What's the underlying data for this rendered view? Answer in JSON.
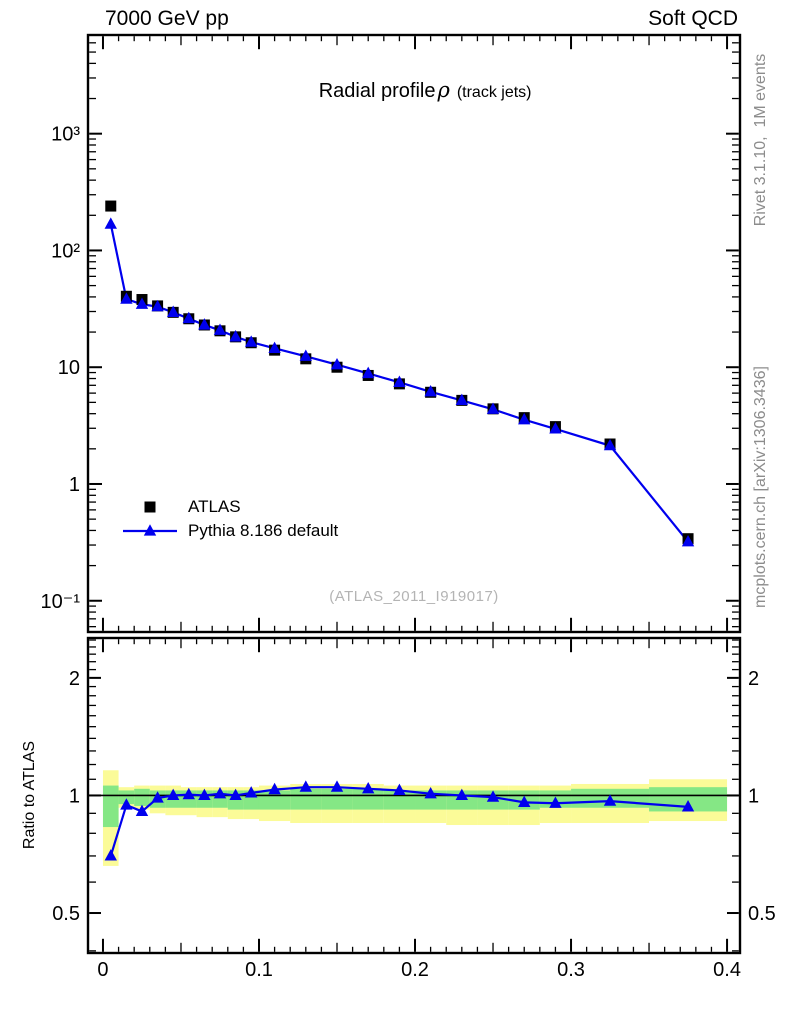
{
  "header": {
    "left": "7000 GeV pp",
    "right": "Soft QCD"
  },
  "title": {
    "main": "Radial profile",
    "symbol": "ρ",
    "paren": "(track jets)"
  },
  "legend": {
    "items": [
      {
        "label": "ATLAS",
        "marker": "black-square"
      },
      {
        "label": "Pythia 8.186 default",
        "marker": "blue-line-triangle"
      }
    ]
  },
  "watermark": "(ATLAS_2011_I919017)",
  "axis_labels": {
    "ratio_y": "Ratio to ATLAS"
  },
  "side_notes": {
    "right_top": "Rivet 3.1.10,  1M events",
    "right_bottom": "mcplots.cern.ch [arXiv:1306.3436]"
  },
  "colors": {
    "mc_blue": "#0000ee",
    "data_black": "#000000",
    "band_yellow": "#fbfb98",
    "band_green": "#85e785",
    "gray_text": "#8c8c8c",
    "watermark_gray": "#b4b4b4",
    "frame_black": "#000000"
  },
  "chart_data": [
    {
      "type": "line",
      "title": "Radial profile ρ (track jets)",
      "xlabel": "",
      "ylabel": "",
      "yscale": "log",
      "xlim": [
        -0.0096,
        0.4083
      ],
      "ylim": [
        0.054,
        7000
      ],
      "x": [
        0.005,
        0.015,
        0.025,
        0.035,
        0.045,
        0.055,
        0.065,
        0.075,
        0.085,
        0.095,
        0.11,
        0.13,
        0.15,
        0.17,
        0.19,
        0.21,
        0.23,
        0.25,
        0.27,
        0.29,
        0.325,
        0.375
      ],
      "series": [
        {
          "name": "ATLAS",
          "marker": "square",
          "color": "#000000",
          "values": [
            240,
            40.5,
            38.0,
            33.5,
            29.5,
            26.0,
            23.0,
            20.5,
            18.2,
            16.2,
            14.0,
            11.8,
            10.0,
            8.5,
            7.2,
            6.1,
            5.2,
            4.4,
            3.7,
            3.1,
            2.2,
            0.34
          ]
        },
        {
          "name": "Pythia 8.186 default",
          "marker": "triangle",
          "color": "#0000ee",
          "values": [
            168,
            38.3,
            34.6,
            33.0,
            29.5,
            26.1,
            23.0,
            20.7,
            18.2,
            16.4,
            14.5,
            12.4,
            10.5,
            8.84,
            7.42,
            6.16,
            5.2,
            4.36,
            3.55,
            2.96,
            2.13,
            0.32
          ]
        }
      ],
      "xticks": [
        {
          "label": "0",
          "value": 0.0
        },
        {
          "label": "0.1",
          "value": 0.1
        },
        {
          "label": "0.2",
          "value": 0.2
        },
        {
          "label": "0.3",
          "value": 0.3
        },
        {
          "label": "0.4",
          "value": 0.4
        }
      ],
      "yticks": [
        {
          "label": "10³",
          "value": 1000
        },
        {
          "label": "10²",
          "value": 100
        },
        {
          "label": "10",
          "value": 10
        },
        {
          "label": "1",
          "value": 1
        },
        {
          "label": "10⁻¹",
          "value": 0.1
        }
      ],
      "legend_position": "inside-left-bottom",
      "grid": false
    },
    {
      "type": "ratio-line",
      "ylabel": "Ratio to ATLAS",
      "yscale": "log",
      "ylim": [
        0.395,
        2.53
      ],
      "x": [
        0.005,
        0.015,
        0.025,
        0.035,
        0.045,
        0.055,
        0.065,
        0.075,
        0.085,
        0.095,
        0.11,
        0.13,
        0.15,
        0.17,
        0.19,
        0.21,
        0.23,
        0.25,
        0.27,
        0.29,
        0.325,
        0.375
      ],
      "values": [
        0.7,
        0.945,
        0.91,
        0.985,
        1.0,
        1.005,
        1.0,
        1.01,
        1.0,
        1.015,
        1.035,
        1.05,
        1.05,
        1.04,
        1.03,
        1.01,
        1.0,
        0.99,
        0.96,
        0.955,
        0.967,
        0.935
      ],
      "bin_edges": [
        0,
        0.01,
        0.02,
        0.03,
        0.04,
        0.05,
        0.06,
        0.07,
        0.08,
        0.09,
        0.1,
        0.12,
        0.14,
        0.16,
        0.18,
        0.2,
        0.22,
        0.24,
        0.26,
        0.28,
        0.3,
        0.35,
        0.4
      ],
      "band_yellow": [
        [
          0.66,
          1.16
        ],
        [
          0.93,
          1.05
        ],
        [
          0.92,
          1.06
        ],
        [
          0.9,
          1.06
        ],
        [
          0.89,
          1.06
        ],
        [
          0.89,
          1.05
        ],
        [
          0.88,
          1.05
        ],
        [
          0.88,
          1.05
        ],
        [
          0.87,
          1.05
        ],
        [
          0.87,
          1.05
        ],
        [
          0.86,
          1.06
        ],
        [
          0.85,
          1.07
        ],
        [
          0.85,
          1.07
        ],
        [
          0.85,
          1.07
        ],
        [
          0.85,
          1.06
        ],
        [
          0.85,
          1.06
        ],
        [
          0.84,
          1.06
        ],
        [
          0.84,
          1.06
        ],
        [
          0.84,
          1.06
        ],
        [
          0.85,
          1.06
        ],
        [
          0.85,
          1.07
        ],
        [
          0.86,
          1.1
        ]
      ],
      "band_green": [
        [
          0.83,
          1.06
        ],
        [
          0.95,
          1.03
        ],
        [
          0.94,
          1.04
        ],
        [
          0.93,
          1.03
        ],
        [
          0.93,
          1.03
        ],
        [
          0.93,
          1.03
        ],
        [
          0.93,
          1.03
        ],
        [
          0.93,
          1.03
        ],
        [
          0.92,
          1.03
        ],
        [
          0.92,
          1.03
        ],
        [
          0.92,
          1.03
        ],
        [
          0.92,
          1.04
        ],
        [
          0.92,
          1.04
        ],
        [
          0.92,
          1.04
        ],
        [
          0.92,
          1.03
        ],
        [
          0.92,
          1.03
        ],
        [
          0.92,
          1.03
        ],
        [
          0.92,
          1.03
        ],
        [
          0.92,
          1.03
        ],
        [
          0.93,
          1.03
        ],
        [
          0.93,
          1.04
        ],
        [
          0.91,
          1.05
        ]
      ],
      "yticks": [
        {
          "label": "2",
          "value": 2
        },
        {
          "label": "1",
          "value": 1
        },
        {
          "label": "0.5",
          "value": 0.5
        }
      ],
      "reference_line": 1
    }
  ]
}
